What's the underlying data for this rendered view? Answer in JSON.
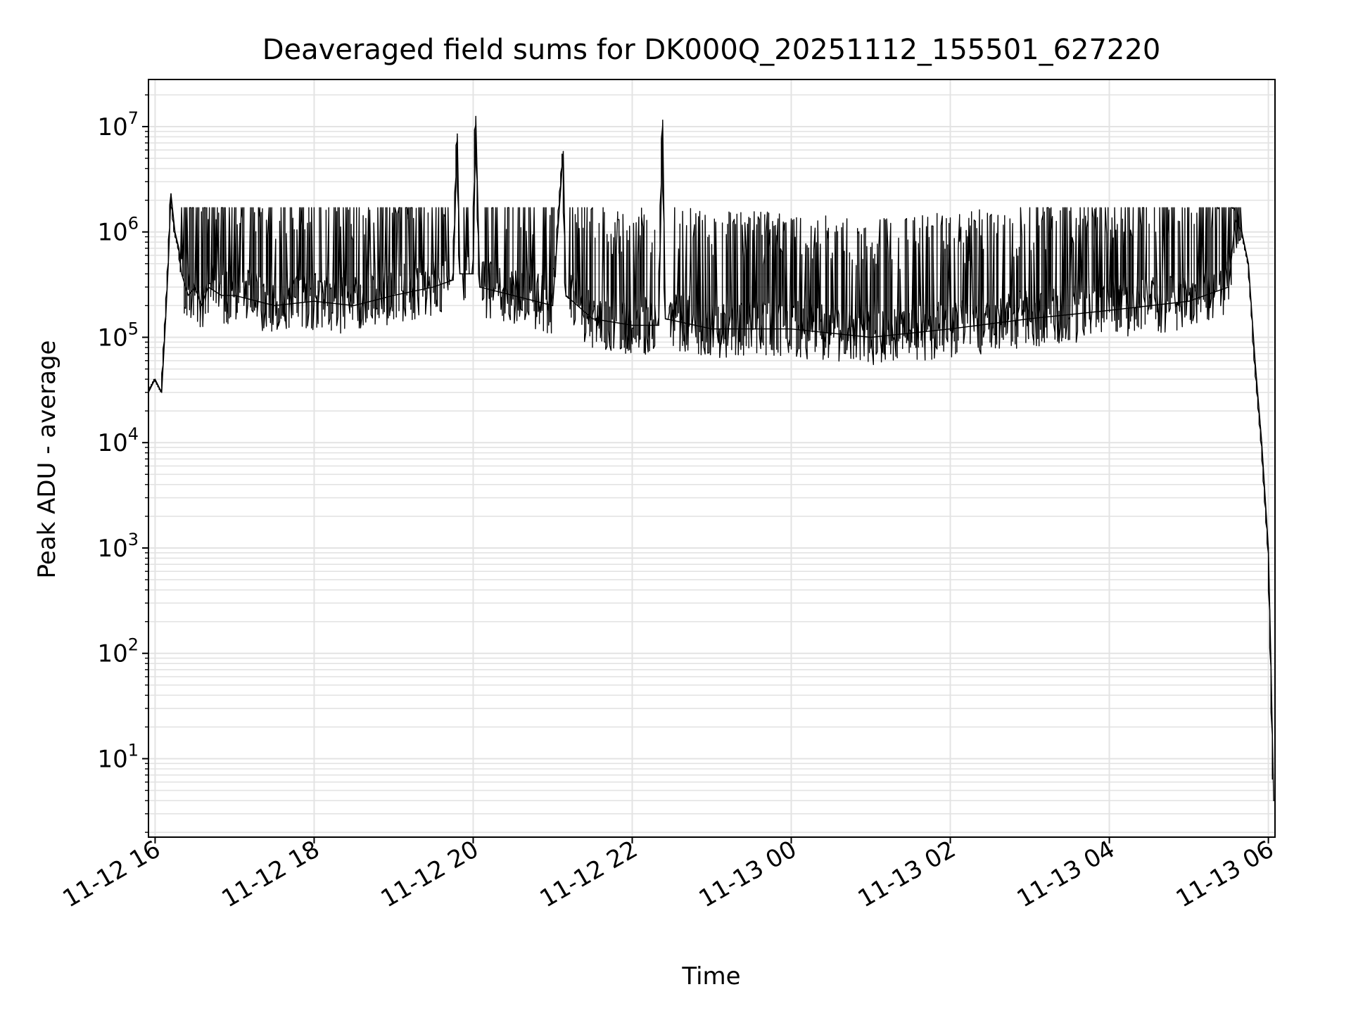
{
  "chart_data": {
    "type": "line",
    "title": "Deaveraged field sums for DK000Q_20251112_155501_627220",
    "xlabel": "Time",
    "ylabel": "Peak ADU - average",
    "yscale": "log",
    "xlim": [
      "2025-11-12 15:55",
      "2025-11-13 06:05"
    ],
    "ylim": [
      1.8,
      28000000
    ],
    "x_ticks": [
      "11-12 16",
      "11-12 18",
      "11-12 20",
      "11-12 22",
      "11-13 00",
      "11-13 02",
      "11-13 04",
      "11-13 06"
    ],
    "x_tick_times": [
      "2025-11-12 16:00",
      "2025-11-12 18:00",
      "2025-11-12 20:00",
      "2025-11-12 22:00",
      "2025-11-13 00:00",
      "2025-11-13 02:00",
      "2025-11-13 04:00",
      "2025-11-13 06:00"
    ],
    "y_ticks": [
      {
        "base": "10",
        "exp": "1",
        "value": 10
      },
      {
        "base": "10",
        "exp": "2",
        "value": 100
      },
      {
        "base": "10",
        "exp": "3",
        "value": 1000
      },
      {
        "base": "10",
        "exp": "4",
        "value": 10000
      },
      {
        "base": "10",
        "exp": "5",
        "value": 100000
      },
      {
        "base": "10",
        "exp": "6",
        "value": 1000000
      },
      {
        "base": "10",
        "exp": "7",
        "value": 10000000
      }
    ],
    "grid": true,
    "series": [
      {
        "color": "#000000",
        "x": [
          "2025-11-12 15:55",
          "2025-11-12 16:00",
          "2025-11-12 16:05",
          "2025-11-12 16:08",
          "2025-11-12 16:10",
          "2025-11-12 16:12",
          "2025-11-12 16:15",
          "2025-11-12 16:18",
          "2025-11-12 16:20",
          "2025-11-12 16:25",
          "2025-11-12 16:30",
          "2025-11-12 16:35",
          "2025-11-12 16:40",
          "2025-11-12 16:50",
          "2025-11-12 17:00",
          "2025-11-12 17:30",
          "2025-11-12 18:00",
          "2025-11-12 18:30",
          "2025-11-12 19:00",
          "2025-11-12 19:30",
          "2025-11-12 19:45",
          "2025-11-12 19:48",
          "2025-11-12 19:50",
          "2025-11-12 20:00",
          "2025-11-12 20:02",
          "2025-11-12 20:05",
          "2025-11-12 20:30",
          "2025-11-12 21:00",
          "2025-11-12 21:08",
          "2025-11-12 21:10",
          "2025-11-12 21:30",
          "2025-11-12 22:00",
          "2025-11-12 22:20",
          "2025-11-12 22:23",
          "2025-11-12 22:25",
          "2025-11-12 23:00",
          "2025-11-13 00:00",
          "2025-11-13 01:00",
          "2025-11-13 02:00",
          "2025-11-13 03:00",
          "2025-11-13 04:00",
          "2025-11-13 05:00",
          "2025-11-13 05:30",
          "2025-11-13 05:35",
          "2025-11-13 05:40",
          "2025-11-13 05:45",
          "2025-11-13 05:50",
          "2025-11-13 05:55",
          "2025-11-13 06:00",
          "2025-11-13 06:02",
          "2025-11-13 06:04"
        ],
        "y": [
          30000,
          40000,
          30000,
          150000,
          500000,
          2300000,
          1000000,
          700000,
          400000,
          250000,
          300000,
          200000,
          300000,
          250000,
          250000,
          200000,
          220000,
          200000,
          250000,
          300000,
          350000,
          8500000,
          400000,
          400000,
          12500000,
          300000,
          250000,
          200000,
          5800000,
          250000,
          150000,
          130000,
          130000,
          11500000,
          150000,
          120000,
          120000,
          100000,
          120000,
          150000,
          180000,
          220000,
          300000,
          1300000,
          1000000,
          500000,
          60000,
          10000,
          1000,
          80,
          4
        ]
      }
    ]
  }
}
